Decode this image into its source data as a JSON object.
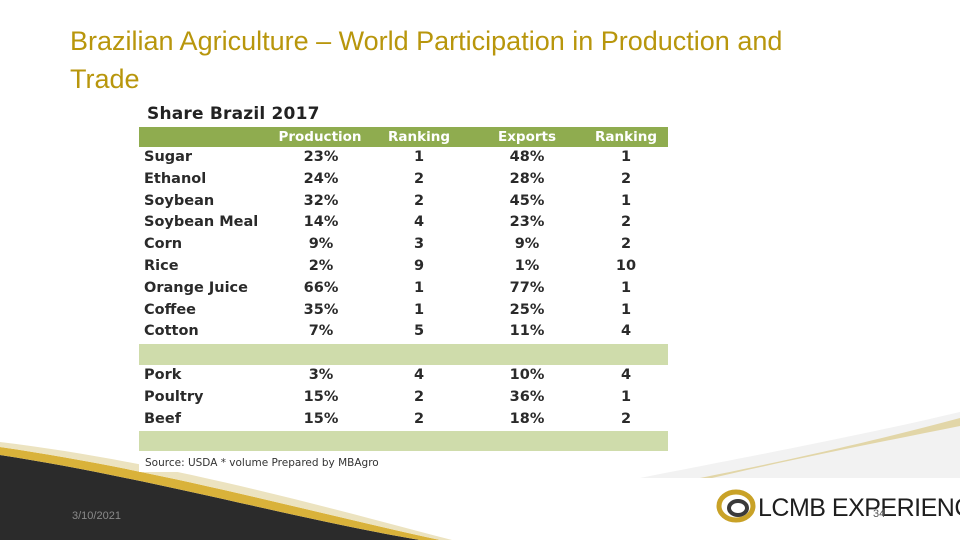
{
  "title": "Brazilian Agriculture – World Participation in Production and Trade",
  "table": {
    "caption": "Share Brazil 2017",
    "headers": [
      "",
      "Production",
      "Ranking",
      "Exports",
      "Ranking"
    ],
    "group1": [
      [
        "Sugar",
        "23%",
        "1",
        "48%",
        "1"
      ],
      [
        "Ethanol",
        "24%",
        "2",
        "28%",
        "2"
      ],
      [
        "Soybean",
        "32%",
        "2",
        "45%",
        "1"
      ],
      [
        "Soybean Meal",
        "14%",
        "4",
        "23%",
        "2"
      ],
      [
        "Corn",
        "9%",
        "3",
        "9%",
        "2"
      ],
      [
        "Rice",
        "2%",
        "9",
        "1%",
        "10"
      ],
      [
        "Orange Juice",
        "66%",
        "1",
        "77%",
        "1"
      ],
      [
        "Coffee",
        "35%",
        "1",
        "25%",
        "1"
      ],
      [
        "Cotton",
        "7%",
        "5",
        "11%",
        "4"
      ]
    ],
    "group2": [
      [
        "Pork",
        "3%",
        "4",
        "10%",
        "4"
      ],
      [
        "Poultry",
        "15%",
        "2",
        "36%",
        "1"
      ],
      [
        "Beef",
        "15%",
        "2",
        "18%",
        "2"
      ]
    ],
    "source": "Source: USDA * volume Prepared by MBAgro"
  },
  "footer": {
    "date": "3/10/2021",
    "page": "34",
    "logo_text": "LCMB EXPERIENCE"
  },
  "colors": {
    "title": "#b8960c",
    "header_bg": "#8fac4f",
    "separator_bg": "#cfdcab",
    "dark_swoosh": "#2b2b2b",
    "gold_swoosh": "#d9b23a"
  }
}
